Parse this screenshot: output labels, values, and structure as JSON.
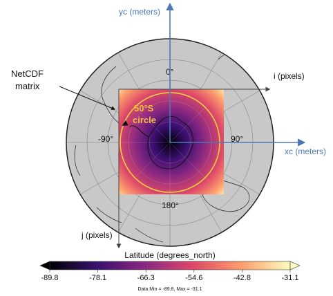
{
  "axes": {
    "yc_label": "yc (meters)",
    "xc_label": "xc (meters)",
    "i_label": "i (pixels)",
    "j_label": "j (pixels)"
  },
  "annotations": {
    "netcdf_label_1": "NetCDF",
    "netcdf_label_2": "matrix",
    "circle_label_1": "50°S",
    "circle_label_2": "circle"
  },
  "longitude_labels": {
    "top": "0°",
    "left": "-90°",
    "right": "90°",
    "bottom": "180°"
  },
  "colorbar": {
    "title": "Latitude (degrees_north)",
    "ticks": [
      "-89.8",
      "-78.1",
      "-66.3",
      "-54.6",
      "-42.8",
      "-31.1"
    ],
    "footer": "Data Min = -89.8, Max = -31.1",
    "colormap": [
      "#000004",
      "#3b0f70",
      "#8c2981",
      "#de4968",
      "#fe9f6d",
      "#fcfdbf"
    ]
  },
  "colors": {
    "axis_arrow": "#4a78b5",
    "circle": "#f3d040",
    "circle_label": "#f3c13a",
    "background_disk": "#c8c8c8"
  }
}
